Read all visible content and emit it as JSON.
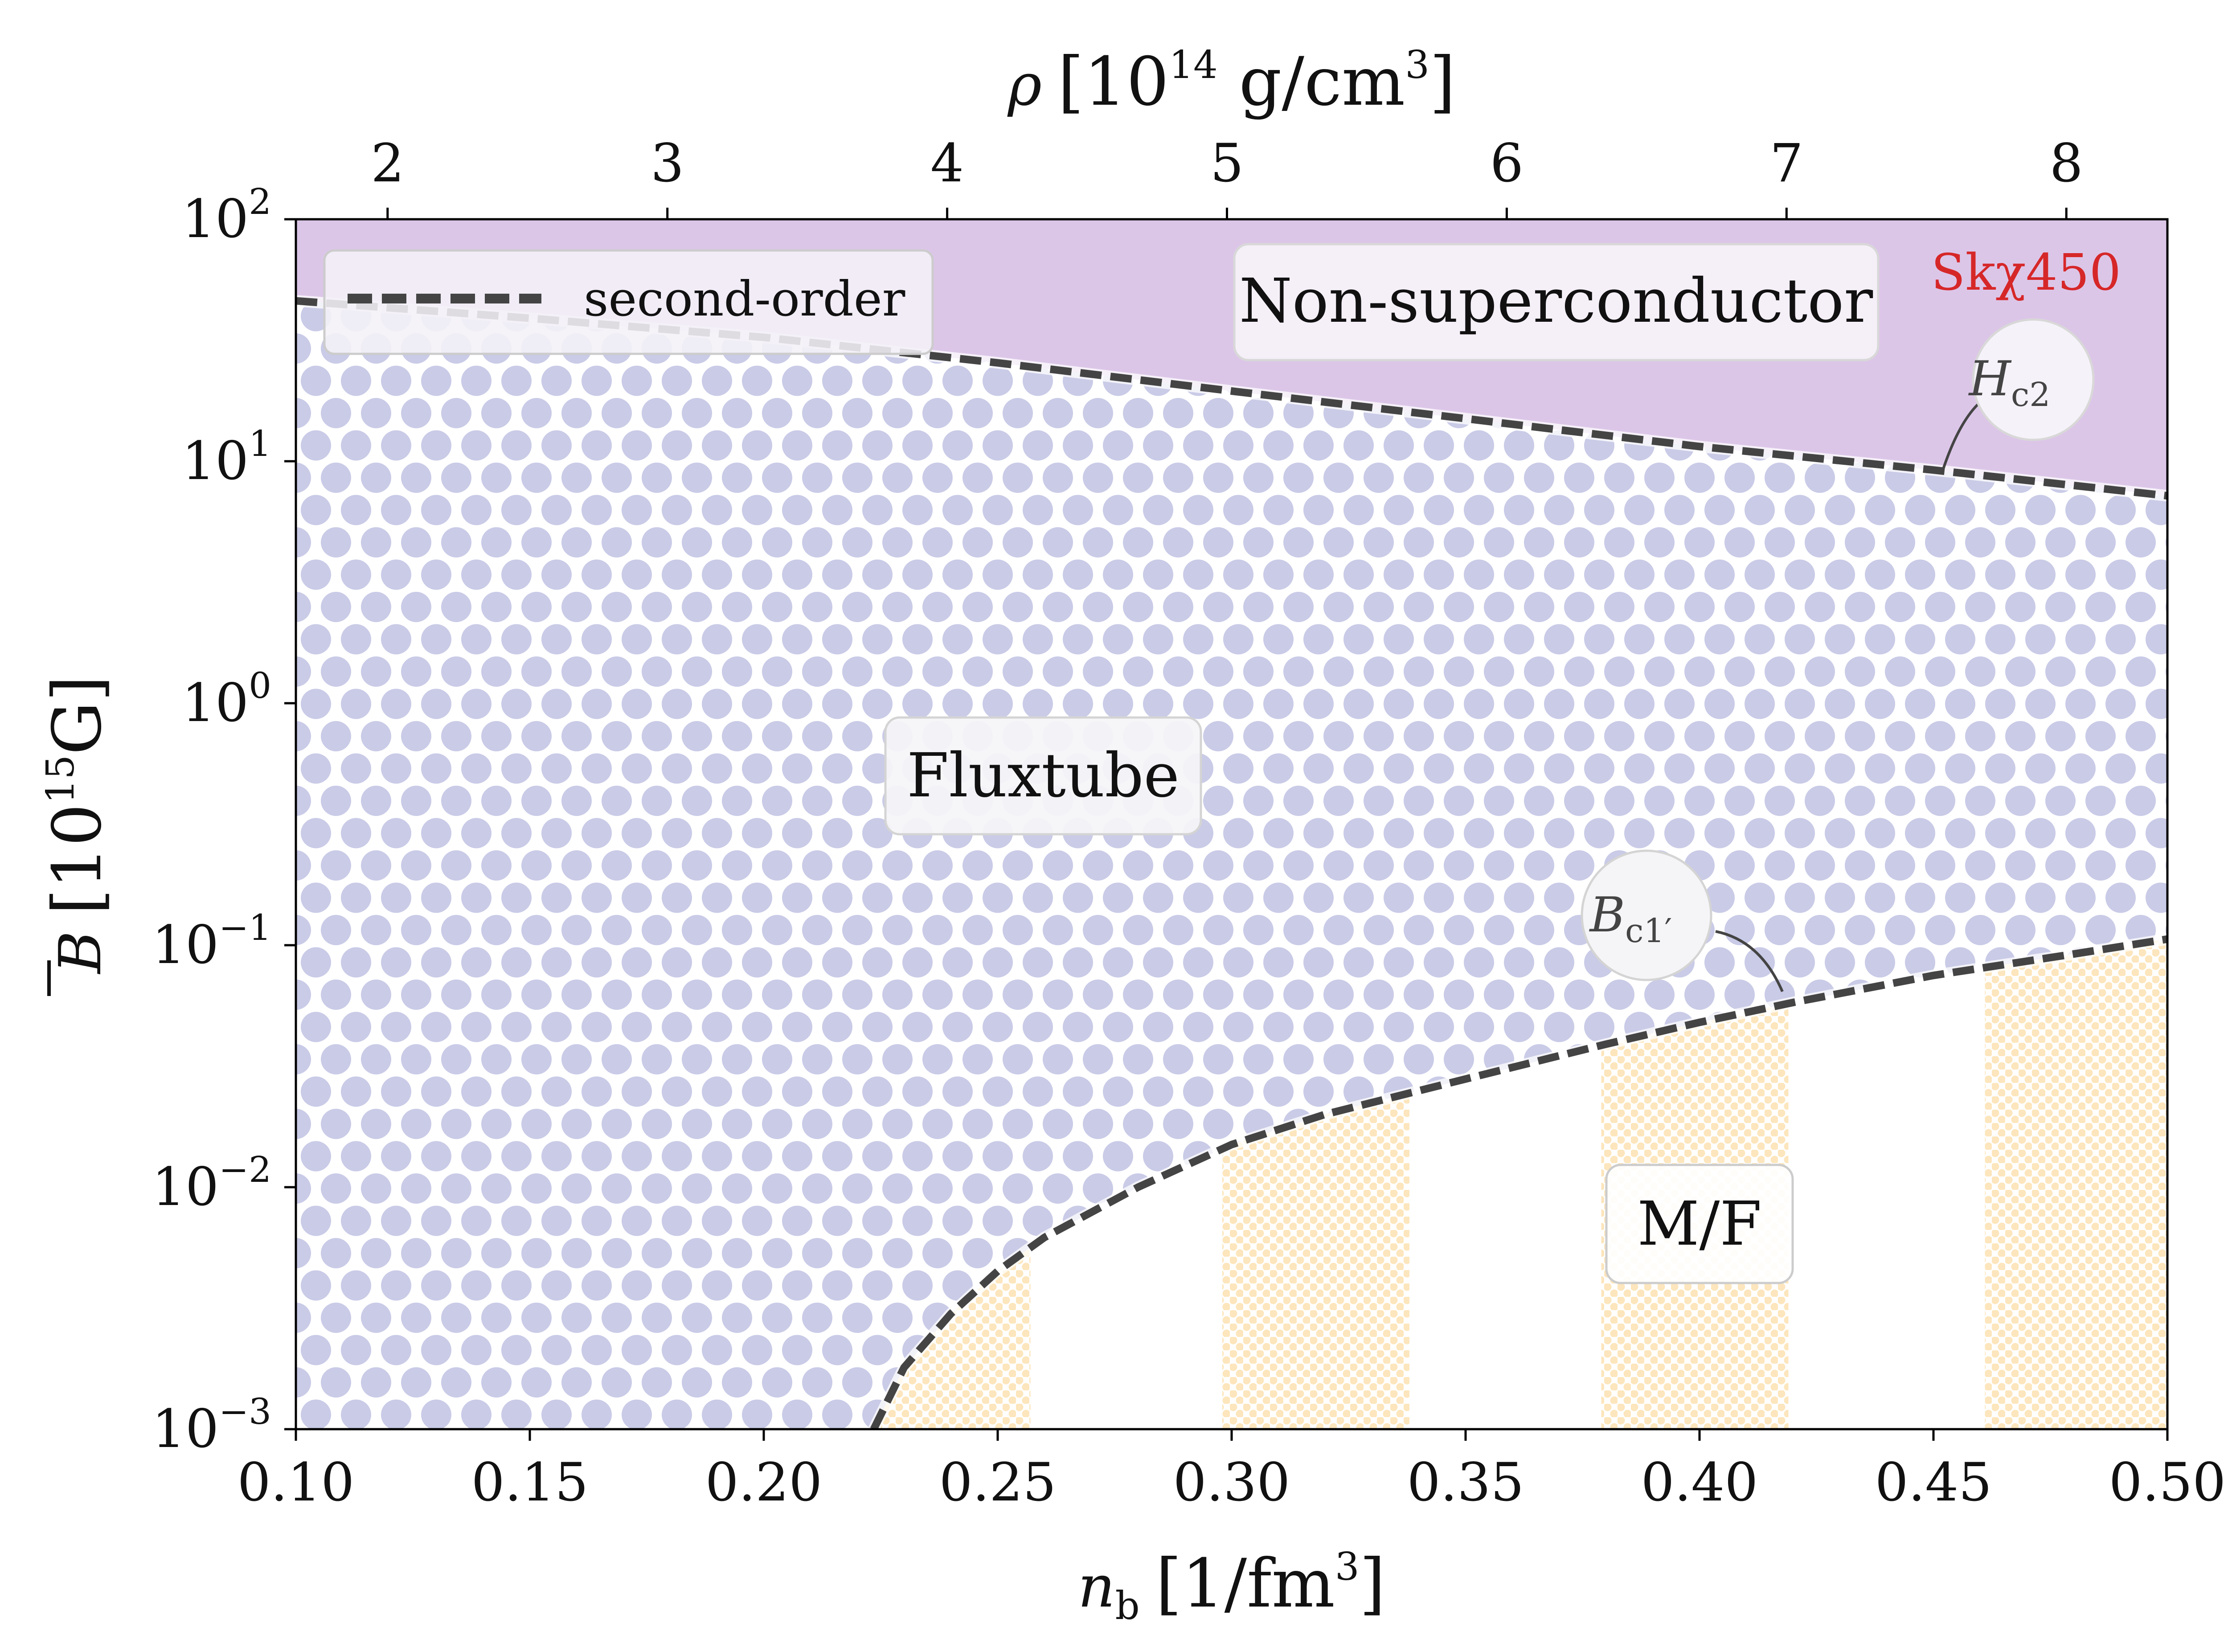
{
  "chart_data": {
    "type": "area",
    "model_label": "Skχ450",
    "x_bottom": {
      "label": "n_b [1/fm^3]",
      "label_main": "n",
      "label_sub": "b",
      "label_unit": "[1/fm",
      "label_unit_sup": "3",
      "label_close": "]",
      "range": [
        0.1,
        0.5
      ],
      "ticks": [
        0.1,
        0.15,
        0.2,
        0.25,
        0.3,
        0.35,
        0.4,
        0.45,
        0.5
      ],
      "tick_labels": [
        "0.10",
        "0.15",
        "0.20",
        "0.25",
        "0.30",
        "0.35",
        "0.40",
        "0.45",
        "0.50"
      ]
    },
    "x_top": {
      "label": "ρ [10^14 g/cm^3]",
      "label_main": "ρ",
      "label_unit_pre": "[10",
      "label_unit_sup": "14",
      "label_unit_mid": " g/cm",
      "label_unit_sup2": "3",
      "label_close": "]",
      "ticks": [
        2,
        3,
        4,
        5,
        6,
        7,
        8
      ],
      "tick_labels": [
        "2",
        "3",
        "4",
        "5",
        "6",
        "7",
        "8"
      ],
      "nb_per_unit_rho": 0.0598
    },
    "y": {
      "label": "B̄ [10^15 G]",
      "label_main": "B",
      "label_unit_pre": "[10",
      "label_unit_sup": "15",
      "label_unit_mid": "G]",
      "scale": "log",
      "range": [
        0.001,
        100
      ],
      "tick_exponents": [
        -3,
        -2,
        -1,
        0,
        1,
        2
      ],
      "tick_base": "10"
    },
    "series": [
      {
        "name": "H_c2",
        "label_main": "H",
        "label_sub": "c2",
        "style": "dashed",
        "x": [
          0.1,
          0.15,
          0.2,
          0.25,
          0.3,
          0.35,
          0.4,
          0.45,
          0.5
        ],
        "y": [
          46,
          39,
          32.5,
          25.5,
          19.5,
          15,
          11.5,
          9.2,
          7.2
        ]
      },
      {
        "name": "B_c1'",
        "label_main": "B",
        "label_sub": "c1′",
        "style": "dashed",
        "x": [
          0.2235,
          0.23,
          0.24,
          0.25,
          0.26,
          0.28,
          0.3,
          0.32,
          0.35,
          0.38,
          0.4,
          0.42,
          0.45,
          0.48,
          0.5
        ],
        "y": [
          0.001,
          0.0018,
          0.003,
          0.0045,
          0.0062,
          0.01,
          0.015,
          0.02,
          0.028,
          0.039,
          0.048,
          0.058,
          0.075,
          0.092,
          0.106
        ]
      }
    ],
    "regions": [
      {
        "name": "Non-superconductor",
        "label": "Non-superconductor",
        "color": "#dcc6e8"
      },
      {
        "name": "Fluxtube",
        "label": "Fluxtube",
        "color": "#c9cbe7"
      },
      {
        "name": "M/F",
        "label": "M/F",
        "color": "#fde6bd"
      }
    ],
    "mf_stripes_nb": [
      [
        0.225,
        0.257
      ],
      [
        0.298,
        0.338
      ],
      [
        0.379,
        0.419
      ],
      [
        0.461,
        0.5
      ]
    ],
    "region_label_positions": {
      "Non-superconductor": {
        "nb": 0.3325,
        "B": 30
      },
      "Fluxtube": {
        "nb": 0.2625,
        "B": 0.51
      },
      "M/F": {
        "nb": 0.3993,
        "B": 0.0068
      }
    },
    "legend": {
      "entries": [
        {
          "label": "second-order",
          "style": "dashed"
        }
      ],
      "position": "top-left"
    },
    "colors": {
      "curve": "#444444",
      "nonsc_fill": "#dcc6e8",
      "flux_dot": "#c9cbe7",
      "mf_dot": "#fde6bd",
      "model": "#d62728"
    }
  }
}
